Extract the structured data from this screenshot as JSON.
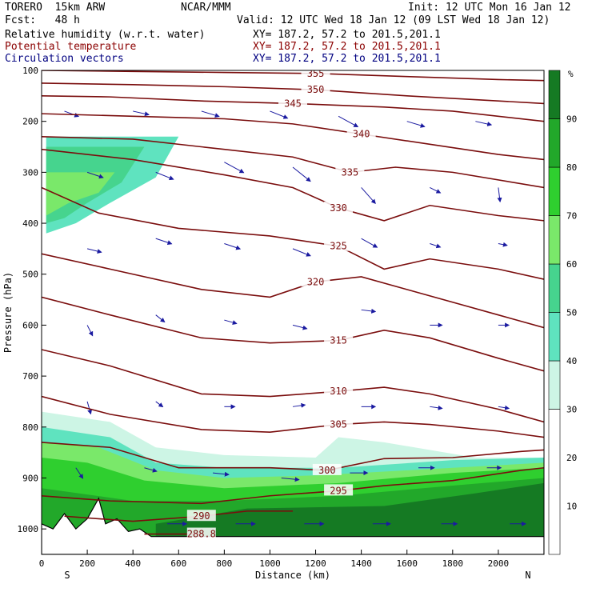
{
  "header": {
    "model": "TORERO  15km ARW",
    "org": "NCAR/MMM",
    "init": "Init: 12 UTC Mon 16 Jan 12",
    "fcst": "Fcst:   48 h",
    "valid": "Valid: 12 UTC Wed 18 Jan 12 (09 LST Wed 18 Jan 12)",
    "fields": [
      {
        "name": "Relative humidity (w.r.t. water)",
        "xy": "XY= 187.2, 57.2 to 201.5,201.1",
        "color": "#000000"
      },
      {
        "name": "Potential temperature",
        "xy": "XY= 187.2, 57.2 to 201.5,201.1",
        "color": "#8b0000"
      },
      {
        "name": "Circulation vectors",
        "xy": "XY= 187.2, 57.2 to 201.5,201.1",
        "color": "#000080"
      }
    ]
  },
  "chart_data": {
    "type": "heatmap",
    "xlabel": "Distance (km)",
    "ylabel": "Pressure (hPa)",
    "xlim": [
      0,
      2200
    ],
    "ylim": [
      100,
      1050
    ],
    "x_ticks": [
      0,
      200,
      400,
      600,
      800,
      1000,
      1200,
      1400,
      1600,
      1800,
      2000
    ],
    "y_ticks": [
      100,
      200,
      300,
      400,
      500,
      600,
      700,
      800,
      900,
      1000
    ],
    "x_end_labels": {
      "left": "S",
      "right": "N"
    },
    "colorbar": {
      "unit": "%",
      "levels": [
        10,
        20,
        30,
        40,
        50,
        60,
        70,
        80,
        90
      ],
      "bins": [
        {
          "from": 0,
          "to": 30,
          "color": "#ffffff"
        },
        {
          "from": 30,
          "to": 40,
          "color": "#cdf5e5"
        },
        {
          "from": 40,
          "to": 50,
          "color": "#5fe3bf"
        },
        {
          "from": 50,
          "to": 60,
          "color": "#46d48e"
        },
        {
          "from": 60,
          "to": 70,
          "color": "#7ae86a"
        },
        {
          "from": 70,
          "to": 80,
          "color": "#2fcf2f"
        },
        {
          "from": 80,
          "to": 90,
          "color": "#22a82a"
        },
        {
          "from": 90,
          "to": 100,
          "color": "#157a23"
        }
      ]
    },
    "isentropes": [
      {
        "theta": 355,
        "label": "355",
        "points": [
          [
            0,
            100
          ],
          [
            400,
            102
          ],
          [
            800,
            104
          ],
          [
            1200,
            106
          ],
          [
            1600,
            112
          ],
          [
            2000,
            118
          ],
          [
            2200,
            120
          ]
        ]
      },
      {
        "theta": 350,
        "label": "350",
        "points": [
          [
            0,
            125
          ],
          [
            400,
            128
          ],
          [
            800,
            132
          ],
          [
            1200,
            138
          ],
          [
            1600,
            150
          ],
          [
            2000,
            160
          ],
          [
            2200,
            165
          ]
        ]
      },
      {
        "theta": 345,
        "label": "345",
        "points": [
          [
            0,
            150
          ],
          [
            300,
            152
          ],
          [
            700,
            160
          ],
          [
            1100,
            165
          ],
          [
            1500,
            172
          ],
          [
            1800,
            180
          ],
          [
            2200,
            200
          ]
        ]
      },
      {
        "theta": 340,
        "label": "340",
        "points": [
          [
            0,
            185
          ],
          [
            400,
            190
          ],
          [
            800,
            195
          ],
          [
            1100,
            205
          ],
          [
            1400,
            225
          ],
          [
            1700,
            245
          ],
          [
            2000,
            265
          ],
          [
            2200,
            275
          ]
        ]
      },
      {
        "theta": 335,
        "label": "335",
        "points": [
          [
            0,
            230
          ],
          [
            400,
            235
          ],
          [
            800,
            255
          ],
          [
            1100,
            270
          ],
          [
            1350,
            300
          ],
          [
            1550,
            290
          ],
          [
            1800,
            300
          ],
          [
            2200,
            330
          ]
        ]
      },
      {
        "theta": 330,
        "label": "330",
        "points": [
          [
            0,
            255
          ],
          [
            400,
            275
          ],
          [
            800,
            305
          ],
          [
            1100,
            330
          ],
          [
            1300,
            370
          ],
          [
            1500,
            395
          ],
          [
            1700,
            365
          ],
          [
            2000,
            385
          ],
          [
            2200,
            395
          ]
        ]
      },
      {
        "theta": 325,
        "label": "325",
        "points": [
          [
            0,
            330
          ],
          [
            250,
            380
          ],
          [
            600,
            410
          ],
          [
            1000,
            425
          ],
          [
            1300,
            445
          ],
          [
            1500,
            490
          ],
          [
            1700,
            470
          ],
          [
            2000,
            490
          ],
          [
            2200,
            510
          ]
        ]
      },
      {
        "theta": 320,
        "label": "320",
        "points": [
          [
            0,
            460
          ],
          [
            300,
            490
          ],
          [
            700,
            530
          ],
          [
            1000,
            545
          ],
          [
            1200,
            515
          ],
          [
            1400,
            505
          ],
          [
            1600,
            530
          ],
          [
            2000,
            580
          ],
          [
            2200,
            605
          ]
        ]
      },
      {
        "theta": 315,
        "label": "315",
        "points": [
          [
            0,
            545
          ],
          [
            300,
            580
          ],
          [
            700,
            625
          ],
          [
            1000,
            635
          ],
          [
            1300,
            630
          ],
          [
            1500,
            610
          ],
          [
            1700,
            625
          ],
          [
            2000,
            665
          ],
          [
            2200,
            690
          ]
        ]
      },
      {
        "theta": 310,
        "label": "310",
        "points": [
          [
            0,
            648
          ],
          [
            300,
            680
          ],
          [
            700,
            735
          ],
          [
            1000,
            740
          ],
          [
            1300,
            730
          ],
          [
            1500,
            722
          ],
          [
            1700,
            735
          ],
          [
            2000,
            765
          ],
          [
            2200,
            790
          ]
        ]
      },
      {
        "theta": 305,
        "label": "305",
        "points": [
          [
            0,
            740
          ],
          [
            300,
            775
          ],
          [
            700,
            805
          ],
          [
            1000,
            810
          ],
          [
            1300,
            795
          ],
          [
            1500,
            790
          ],
          [
            1700,
            795
          ],
          [
            2000,
            808
          ],
          [
            2200,
            820
          ]
        ]
      },
      {
        "theta": 300,
        "label": "300",
        "points": [
          [
            0,
            830
          ],
          [
            300,
            840
          ],
          [
            600,
            880
          ],
          [
            1000,
            880
          ],
          [
            1250,
            885
          ],
          [
            1500,
            862
          ],
          [
            1800,
            860
          ],
          [
            2100,
            848
          ],
          [
            2200,
            845
          ]
        ]
      },
      {
        "theta": 295,
        "label": "295",
        "points": [
          [
            0,
            935
          ],
          [
            300,
            945
          ],
          [
            700,
            950
          ],
          [
            1000,
            935
          ],
          [
            1300,
            925
          ],
          [
            1500,
            915
          ],
          [
            1800,
            905
          ],
          [
            2100,
            885
          ],
          [
            2200,
            880
          ]
        ]
      },
      {
        "theta": 290,
        "label": "290",
        "points": [
          [
            100,
            975
          ],
          [
            400,
            985
          ],
          [
            700,
            975
          ],
          [
            900,
            965
          ],
          [
            1100,
            965
          ]
        ]
      },
      {
        "theta": 288.8,
        "label": "288.8",
        "points": [
          [
            450,
            1010
          ],
          [
            700,
            1010
          ]
        ]
      }
    ],
    "rh_regions": [
      {
        "rh": 40,
        "points": [
          [
            20,
            230
          ],
          [
            600,
            230
          ],
          [
            500,
            310
          ],
          [
            300,
            360
          ],
          [
            150,
            400
          ],
          [
            20,
            420
          ]
        ]
      },
      {
        "rh": 50,
        "points": [
          [
            20,
            250
          ],
          [
            450,
            250
          ],
          [
            350,
            320
          ],
          [
            200,
            360
          ],
          [
            100,
            390
          ],
          [
            20,
            400
          ]
        ]
      },
      {
        "rh": 60,
        "points": [
          [
            20,
            300
          ],
          [
            320,
            300
          ],
          [
            250,
            340
          ],
          [
            120,
            360
          ],
          [
            20,
            385
          ]
        ]
      },
      {
        "rh": 30,
        "points": [
          [
            0,
            770
          ],
          [
            300,
            790
          ],
          [
            500,
            840
          ],
          [
            800,
            855
          ],
          [
            1200,
            860
          ],
          [
            1300,
            820
          ],
          [
            1500,
            830
          ],
          [
            1900,
            860
          ],
          [
            2200,
            860
          ],
          [
            2200,
            1015
          ],
          [
            0,
            1015
          ]
        ]
      },
      {
        "rh": 40,
        "points": [
          [
            0,
            800
          ],
          [
            300,
            820
          ],
          [
            500,
            870
          ],
          [
            800,
            880
          ],
          [
            1300,
            880
          ],
          [
            1800,
            865
          ],
          [
            2200,
            860
          ],
          [
            2200,
            1015
          ],
          [
            0,
            1015
          ]
        ]
      },
      {
        "rh": 60,
        "points": [
          [
            0,
            830
          ],
          [
            250,
            840
          ],
          [
            500,
            885
          ],
          [
            800,
            900
          ],
          [
            1200,
            895
          ],
          [
            1800,
            880
          ],
          [
            2200,
            870
          ],
          [
            2200,
            1015
          ],
          [
            0,
            1015
          ]
        ]
      },
      {
        "rh": 70,
        "points": [
          [
            0,
            860
          ],
          [
            200,
            870
          ],
          [
            450,
            905
          ],
          [
            800,
            920
          ],
          [
            1300,
            910
          ],
          [
            1800,
            890
          ],
          [
            2200,
            880
          ],
          [
            2200,
            1015
          ],
          [
            0,
            1015
          ]
        ]
      },
      {
        "rh": 80,
        "points": [
          [
            0,
            920
          ],
          [
            400,
            945
          ],
          [
            800,
            945
          ],
          [
            1300,
            935
          ],
          [
            1800,
            915
          ],
          [
            2200,
            900
          ],
          [
            2200,
            1015
          ],
          [
            0,
            1015
          ]
        ]
      },
      {
        "rh": 90,
        "points": [
          [
            500,
            990
          ],
          [
            900,
            960
          ],
          [
            1500,
            955
          ],
          [
            1900,
            930
          ],
          [
            2200,
            910
          ],
          [
            2200,
            1015
          ],
          [
            500,
            1015
          ]
        ]
      }
    ],
    "terrain": [
      [
        0,
        990
      ],
      [
        50,
        1000
      ],
      [
        100,
        970
      ],
      [
        150,
        1000
      ],
      [
        200,
        980
      ],
      [
        250,
        940
      ],
      [
        280,
        990
      ],
      [
        330,
        980
      ],
      [
        380,
        1005
      ],
      [
        430,
        1000
      ],
      [
        480,
        1015
      ],
      [
        2200,
        1015
      ]
    ],
    "wind_vectors": [
      {
        "x": 100,
        "p": 180,
        "u": 0.8,
        "w": -0.3
      },
      {
        "x": 400,
        "p": 180,
        "u": 0.9,
        "w": -0.2
      },
      {
        "x": 700,
        "p": 180,
        "u": 1.0,
        "w": -0.3
      },
      {
        "x": 1000,
        "p": 180,
        "u": 1.0,
        "w": -0.4
      },
      {
        "x": 1300,
        "p": 190,
        "u": 1.1,
        "w": -0.6
      },
      {
        "x": 1600,
        "p": 200,
        "u": 1.0,
        "w": -0.3
      },
      {
        "x": 1900,
        "p": 200,
        "u": 0.9,
        "w": -0.2
      },
      {
        "x": 200,
        "p": 300,
        "u": 0.9,
        "w": -0.3
      },
      {
        "x": 500,
        "p": 300,
        "u": 1.0,
        "w": -0.4
      },
      {
        "x": 800,
        "p": 280,
        "u": 1.1,
        "w": -0.6
      },
      {
        "x": 1100,
        "p": 290,
        "u": 1.0,
        "w": -0.8
      },
      {
        "x": 1400,
        "p": 330,
        "u": 0.8,
        "w": -0.9
      },
      {
        "x": 1700,
        "p": 330,
        "u": 0.6,
        "w": -0.3
      },
      {
        "x": 2000,
        "p": 330,
        "u": 0.1,
        "w": -0.8
      },
      {
        "x": 200,
        "p": 450,
        "u": 0.8,
        "w": -0.2
      },
      {
        "x": 500,
        "p": 430,
        "u": 0.9,
        "w": -0.3
      },
      {
        "x": 800,
        "p": 440,
        "u": 0.9,
        "w": -0.3
      },
      {
        "x": 1100,
        "p": 450,
        "u": 1.0,
        "w": -0.4
      },
      {
        "x": 1400,
        "p": 430,
        "u": 0.9,
        "w": -0.5
      },
      {
        "x": 1700,
        "p": 440,
        "u": 0.6,
        "w": -0.2
      },
      {
        "x": 2000,
        "p": 440,
        "u": 0.5,
        "w": -0.1
      },
      {
        "x": 200,
        "p": 600,
        "u": 0.3,
        "w": -0.6
      },
      {
        "x": 500,
        "p": 580,
        "u": 0.5,
        "w": -0.4
      },
      {
        "x": 800,
        "p": 590,
        "u": 0.7,
        "w": -0.2
      },
      {
        "x": 1100,
        "p": 600,
        "u": 0.8,
        "w": -0.2
      },
      {
        "x": 1400,
        "p": 570,
        "u": 0.8,
        "w": -0.1
      },
      {
        "x": 1700,
        "p": 600,
        "u": 0.7,
        "w": 0.0
      },
      {
        "x": 2000,
        "p": 600,
        "u": 0.6,
        "w": 0.0
      },
      {
        "x": 200,
        "p": 750,
        "u": 0.2,
        "w": -0.7
      },
      {
        "x": 500,
        "p": 750,
        "u": 0.4,
        "w": -0.3
      },
      {
        "x": 800,
        "p": 760,
        "u": 0.6,
        "w": 0.0
      },
      {
        "x": 1100,
        "p": 760,
        "u": 0.7,
        "w": 0.1
      },
      {
        "x": 1400,
        "p": 760,
        "u": 0.8,
        "w": 0.0
      },
      {
        "x": 1700,
        "p": 760,
        "u": 0.7,
        "w": -0.1
      },
      {
        "x": 2000,
        "p": 760,
        "u": 0.6,
        "w": -0.1
      },
      {
        "x": 150,
        "p": 880,
        "u": 0.4,
        "w": -0.6
      },
      {
        "x": 450,
        "p": 880,
        "u": 0.7,
        "w": -0.2
      },
      {
        "x": 750,
        "p": 890,
        "u": 0.9,
        "w": -0.1
      },
      {
        "x": 1050,
        "p": 900,
        "u": 1.0,
        "w": -0.1
      },
      {
        "x": 1350,
        "p": 890,
        "u": 1.0,
        "w": 0.0
      },
      {
        "x": 1650,
        "p": 880,
        "u": 0.9,
        "w": 0.0
      },
      {
        "x": 1950,
        "p": 880,
        "u": 0.8,
        "w": 0.0
      },
      {
        "x": 550,
        "p": 990,
        "u": 1.1,
        "w": 0.0
      },
      {
        "x": 850,
        "p": 990,
        "u": 1.1,
        "w": 0.0
      },
      {
        "x": 1150,
        "p": 990,
        "u": 1.1,
        "w": 0.0
      },
      {
        "x": 1450,
        "p": 990,
        "u": 1.0,
        "w": 0.0
      },
      {
        "x": 1750,
        "p": 990,
        "u": 0.9,
        "w": 0.0
      },
      {
        "x": 2050,
        "p": 990,
        "u": 0.9,
        "w": 0.0
      }
    ]
  }
}
